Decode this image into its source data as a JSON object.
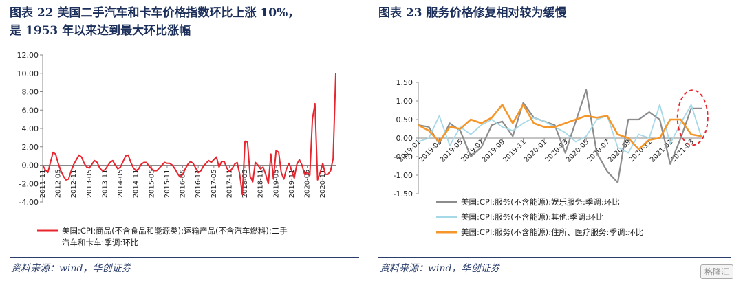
{
  "left": {
    "title_line1": "图表 22    美国二手汽车和卡车价格指数环比上涨 10%，",
    "title_line2": "是 1953 年以来达到最大环比涨幅",
    "source": "资料来源：wind，华创证券"
  },
  "right": {
    "title_line1": "图表 23    服务价格修复相对较为缓慢",
    "source": "资料来源：wind，华创证券"
  },
  "watermark": "格隆汇",
  "colors": {
    "red": "#e8252e",
    "gray": "#8c8c8c",
    "lightblue": "#a6d9e8",
    "orange": "#f5962a",
    "rule": "#2a3d6b"
  },
  "chart_data": [
    {
      "type": "line",
      "x": [
        "2011-11",
        "2011-12",
        "2012-01",
        "2012-02",
        "2012-03",
        "2012-04",
        "2012-05",
        "2012-06",
        "2012-07",
        "2012-08",
        "2012-09",
        "2012-10",
        "2012-11",
        "2012-12",
        "2013-01",
        "2013-02",
        "2013-03",
        "2013-04",
        "2013-05",
        "2013-06",
        "2013-07",
        "2013-08",
        "2013-09",
        "2013-10",
        "2013-11",
        "2013-12",
        "2014-01",
        "2014-02",
        "2014-03",
        "2014-04",
        "2014-05",
        "2014-06",
        "2014-07",
        "2014-08",
        "2014-09",
        "2014-10",
        "2014-11",
        "2014-12",
        "2015-01",
        "2015-02",
        "2015-03",
        "2015-04",
        "2015-05",
        "2015-06",
        "2015-07",
        "2015-08",
        "2015-09",
        "2015-10",
        "2015-11",
        "2015-12",
        "2016-01",
        "2016-02",
        "2016-03",
        "2016-04",
        "2016-05",
        "2016-06",
        "2016-07",
        "2016-08",
        "2016-09",
        "2016-10",
        "2016-11",
        "2016-12",
        "2017-01",
        "2017-02",
        "2017-03",
        "2017-04",
        "2017-05",
        "2017-06",
        "2017-07",
        "2017-08",
        "2017-09",
        "2017-10",
        "2017-11",
        "2017-12",
        "2018-01",
        "2018-02",
        "2018-03",
        "2018-04",
        "2018-05",
        "2018-06",
        "2018-07",
        "2018-08",
        "2018-09",
        "2018-10",
        "2018-11",
        "2018-12",
        "2019-01",
        "2019-02",
        "2019-03",
        "2019-04",
        "2019-05",
        "2019-06",
        "2019-07",
        "2019-08",
        "2019-09",
        "2019-10",
        "2019-11",
        "2019-12",
        "2020-01",
        "2020-02",
        "2020-03",
        "2020-04",
        "2020-05",
        "2020-06",
        "2020-07",
        "2020-08",
        "2020-09",
        "2020-10",
        "2020-11",
        "2020-12",
        "2021-01",
        "2021-02",
        "2021-03",
        "2021-04"
      ],
      "x_tick_labels": [
        "2011-11",
        "2012-05",
        "2012-11",
        "2013-05",
        "2013-11",
        "2014-05",
        "2014-11",
        "2015-05",
        "2015-11",
        "2016-05",
        "2016-11",
        "2017-05",
        "2017-11",
        "2018-05",
        "2018-11",
        "2019-05",
        "2019-11",
        "2020-05",
        "2020-11"
      ],
      "series": [
        {
          "name": "美国:CPI:商品(不含食品和能源类):运输产品(不含汽车燃料):二手汽车和卡车:季调:环比",
          "name_line1": "美国:CPI:商品(不含食品和能源类):运输产品(不含汽车燃料):二手",
          "name_line2": "汽车和卡车:季调:环比",
          "values": [
            0.0,
            -0.5,
            -0.8,
            0.3,
            1.4,
            1.2,
            0.2,
            -0.6,
            -1.2,
            -1.6,
            -1.5,
            -0.6,
            0.1,
            0.6,
            1.1,
            0.9,
            0.2,
            -0.2,
            -0.3,
            0.1,
            0.5,
            0.3,
            -0.3,
            -0.6,
            -0.5,
            -0.1,
            0.3,
            0.5,
            0.0,
            -0.4,
            -0.2,
            0.4,
            1.0,
            1.1,
            0.3,
            -0.3,
            -0.6,
            -0.4,
            0.1,
            0.3,
            0.3,
            -0.1,
            -0.4,
            -0.6,
            -0.6,
            -0.3,
            0.0,
            0.3,
            0.2,
            0.2,
            0.0,
            -0.4,
            -0.9,
            -1.3,
            -1.0,
            -0.4,
            0.1,
            0.4,
            0.2,
            -0.3,
            -0.8,
            -0.6,
            -0.1,
            0.2,
            0.5,
            0.3,
            0.6,
            0.9,
            -0.2,
            0.4,
            0.4,
            -0.3,
            -0.7,
            -0.4,
            0.1,
            0.3,
            -1.0,
            -3.2,
            2.6,
            2.5,
            -1.2,
            -1.8,
            0.3,
            0.0,
            -0.4,
            -0.2,
            -1.0,
            -2.0,
            1.2,
            -1.5,
            1.6,
            1.4,
            -0.8,
            -1.5,
            -0.4,
            0.2,
            -0.6,
            -1.4,
            0.1,
            0.6,
            0.0,
            -1.0,
            -0.8,
            -1.1,
            5.0,
            6.7,
            -1.6,
            -0.8,
            0.2,
            -1.0,
            -1.0,
            -0.6,
            0.7,
            10.0
          ]
        }
      ],
      "y_tick_labels": [
        "12.00",
        "10.00",
        "8.00",
        "6.00",
        "4.00",
        "2.00",
        "0.00",
        "-2.00",
        "-4.00"
      ],
      "ylim": [
        -4,
        12
      ],
      "grid": false,
      "legend": "bottom"
    },
    {
      "type": "line",
      "x": [
        "2019-01",
        "2019-02",
        "2019-03",
        "2019-04",
        "2019-05",
        "2019-06",
        "2019-07",
        "2019-08",
        "2019-09",
        "2019-10",
        "2019-11",
        "2019-12",
        "2020-01",
        "2020-02",
        "2020-03",
        "2020-04",
        "2020-05",
        "2020-06",
        "2020-07",
        "2020-08",
        "2020-09",
        "2020-10",
        "2020-11",
        "2020-12",
        "2021-01",
        "2021-02",
        "2021-03",
        "2021-04"
      ],
      "x_tick_labels": [
        "2019-01",
        "2019-03",
        "2019-05",
        "2019-07",
        "2019-09",
        "2019-11",
        "2020-01",
        "2020-03",
        "2020-05",
        "2020-07",
        "2020-09",
        "2020-11",
        "2021-01",
        "2021-03"
      ],
      "series": [
        {
          "name": "美国:CPI:服务(不含能源):娱乐服务:季调:环比",
          "values": [
            0.35,
            0.3,
            -0.15,
            0.4,
            0.2,
            -0.5,
            -0.25,
            0.35,
            0.45,
            0.05,
            0.95,
            0.55,
            0.45,
            0.35,
            -0.4,
            0.45,
            1.3,
            -0.4,
            -0.9,
            -1.2,
            0.5,
            0.5,
            0.7,
            0.5,
            -0.7,
            0.0,
            0.8,
            0.8
          ]
        },
        {
          "name": "美国:CPI:服务(不含能源):其他:季调:环比",
          "values": [
            -0.1,
            0.0,
            0.6,
            -0.2,
            0.3,
            0.1,
            0.35,
            0.5,
            0.3,
            0.2,
            0.4,
            0.55,
            0.45,
            0.3,
            0.15,
            -0.1,
            0.05,
            0.5,
            0.6,
            -0.25,
            -0.4,
            0.1,
            0.0,
            0.9,
            -0.15,
            0.4,
            0.9,
            0.0
          ]
        },
        {
          "name": "美国:CPI:服务(不含能源):住所、医疗服务:季调:环比",
          "values": [
            0.35,
            0.2,
            -0.1,
            0.3,
            0.25,
            0.5,
            0.4,
            0.55,
            0.9,
            0.4,
            0.9,
            0.4,
            0.3,
            0.3,
            0.4,
            0.5,
            0.6,
            0.55,
            0.6,
            0.1,
            0.0,
            -0.3,
            -0.05,
            0.0,
            0.5,
            0.5,
            0.1,
            0.05
          ]
        }
      ],
      "y_tick_labels": [
        "1.50",
        "1.00",
        "0.50",
        "0.00",
        "-0.50",
        "-1.00",
        "-1.50"
      ],
      "ylim": [
        -1.5,
        1.5
      ],
      "grid": false,
      "legend": "bottom"
    }
  ]
}
